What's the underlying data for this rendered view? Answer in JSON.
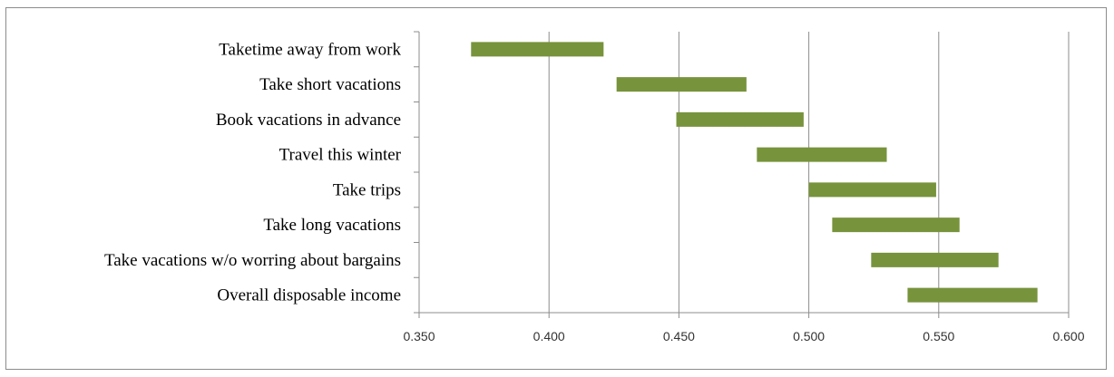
{
  "chart_data": {
    "type": "bar",
    "orientation": "horizontal",
    "subtype": "floating-range",
    "categories": [
      "Taketime away from work",
      "Take short vacations",
      "Book vacations in advance",
      "Travel this winter",
      "Take trips",
      "Take long vacations",
      "Take vacations w/o worring about bargains",
      "Overall disposable income"
    ],
    "series": [
      {
        "ranges": [
          [
            0.37,
            0.421
          ],
          [
            0.426,
            0.476
          ],
          [
            0.449,
            0.498
          ],
          [
            0.48,
            0.53
          ],
          [
            0.5,
            0.549
          ],
          [
            0.509,
            0.558
          ],
          [
            0.524,
            0.573
          ],
          [
            0.538,
            0.588
          ]
        ]
      }
    ],
    "xlim": [
      0.35,
      0.6
    ],
    "xticks": [
      "0.350",
      "0.400",
      "0.450",
      "0.500",
      "0.550",
      "0.600"
    ],
    "grid": "vertical",
    "bar_color": "#77933c",
    "grid_color": "#8c8c8c",
    "title": "",
    "xlabel": "",
    "ylabel": "",
    "legend": "none"
  }
}
